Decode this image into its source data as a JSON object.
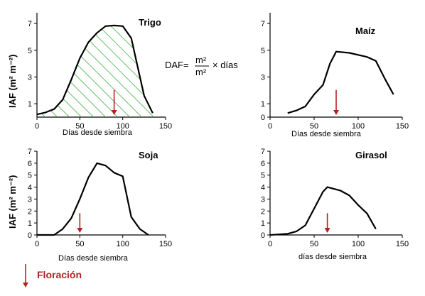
{
  "ylabel": "IAF (m² m⁻²)",
  "legend": {
    "label": "Floración",
    "color": "#b22222"
  },
  "daf_formula": {
    "lhs": "DAF=",
    "numerator": "m²",
    "denominator": "m²",
    "rhs": "× días"
  },
  "colors": {
    "line": "#000000",
    "hatch": "#3cb043",
    "arrow": "#b22222"
  },
  "chart_data": [
    {
      "type": "line",
      "title": "Trigo",
      "xlabel": "Días desde siembra",
      "xlim": [
        0,
        150
      ],
      "ylim": [
        0,
        7.8
      ],
      "xticks": [
        "0",
        "50",
        "100",
        "150"
      ],
      "yticks": [
        "1",
        "3",
        "5",
        "7"
      ],
      "series": [
        {
          "x": [
            0,
            10,
            20,
            30,
            40,
            50,
            60,
            70,
            80,
            90,
            100,
            110,
            118,
            125,
            135
          ],
          "y": [
            0.2,
            0.35,
            0.6,
            1.3,
            2.8,
            4.4,
            5.6,
            6.3,
            6.8,
            6.85,
            6.8,
            5.9,
            3.6,
            1.6,
            0.3
          ]
        }
      ],
      "flowering_x": 90,
      "hatched": true
    },
    {
      "type": "line",
      "title": "Maíz",
      "xlabel": "Días desde siembra",
      "xlim": [
        0,
        150
      ],
      "ylim": [
        0,
        7.8
      ],
      "xticks": [
        "0",
        "50",
        "100",
        "150"
      ],
      "yticks": [
        "0",
        "1",
        "3",
        "5",
        "7"
      ],
      "series": [
        {
          "x": [
            20,
            30,
            40,
            50,
            60,
            68,
            75,
            90,
            110,
            120,
            130,
            140
          ],
          "y": [
            0.3,
            0.5,
            0.8,
            1.7,
            2.4,
            4.0,
            4.9,
            4.8,
            4.5,
            4.2,
            2.9,
            1.7
          ]
        }
      ],
      "flowering_x": 75,
      "hatched": false
    },
    {
      "type": "line",
      "title": "Soja",
      "xlabel": "Días desde siembra",
      "xlim": [
        0,
        150
      ],
      "ylim": [
        0,
        7
      ],
      "xticks": [
        "0",
        "50",
        "100",
        "150"
      ],
      "yticks": [
        "0",
        "1",
        "2",
        "3",
        "4",
        "5",
        "6",
        "7"
      ],
      "series": [
        {
          "x": [
            0,
            20,
            30,
            40,
            50,
            60,
            70,
            80,
            90,
            100,
            110,
            120,
            130
          ],
          "y": [
            0,
            0,
            0.5,
            1.4,
            3.0,
            4.8,
            6.0,
            5.8,
            5.2,
            4.9,
            1.5,
            0.5,
            0
          ]
        }
      ],
      "flowering_x": 50,
      "hatched": false
    },
    {
      "type": "line",
      "title": "Girasol",
      "xlabel": "días desde siembra",
      "xlim": [
        0,
        150
      ],
      "ylim": [
        0,
        7
      ],
      "xticks": [
        "0",
        "50",
        "100",
        "150"
      ],
      "yticks": [
        "0",
        "1",
        "2",
        "3",
        "4",
        "5",
        "6",
        "7"
      ],
      "series": [
        {
          "x": [
            0,
            20,
            30,
            40,
            50,
            60,
            65,
            80,
            90,
            100,
            110,
            120
          ],
          "y": [
            0,
            0.1,
            0.3,
            0.8,
            2.2,
            3.6,
            4.0,
            3.7,
            3.3,
            2.5,
            1.8,
            0.5
          ]
        }
      ],
      "flowering_x": 65,
      "hatched": false
    }
  ]
}
